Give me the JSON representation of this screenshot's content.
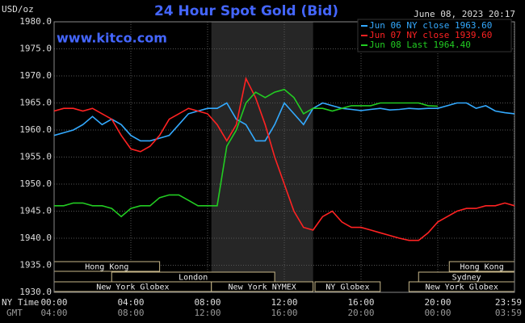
{
  "chart_data": {
    "type": "line",
    "title": "24 Hour Spot Gold (Bid)",
    "unit_label": "USD/oz",
    "timestamp": "June 08, 2023 20:17",
    "watermark": "www.kitco.com",
    "x_label_ny": "NY Time",
    "x_label_gmt": "GMT",
    "x": [
      0,
      0.5,
      1,
      1.5,
      2,
      2.5,
      3,
      3.5,
      4,
      4.5,
      5,
      5.5,
      6,
      6.5,
      7,
      7.5,
      8,
      8.5,
      9,
      9.5,
      10,
      10.5,
      11,
      11.5,
      12,
      12.5,
      13,
      13.5,
      14,
      14.5,
      15,
      15.5,
      16,
      16.5,
      17,
      17.5,
      18,
      18.5,
      19,
      19.5,
      20,
      20.5,
      21,
      21.5,
      22,
      22.5,
      23,
      23.5,
      24
    ],
    "xlim": [
      0,
      24
    ],
    "xticks": [
      {
        "value": 0,
        "label": "00:00",
        "gmt": "04:00"
      },
      {
        "value": 4,
        "label": "04:00",
        "gmt": "08:00"
      },
      {
        "value": 8,
        "label": "08:00",
        "gmt": "12:00"
      },
      {
        "value": 12,
        "label": "12:00",
        "gmt": "16:00"
      },
      {
        "value": 16,
        "label": "16:00",
        "gmt": "20:00"
      },
      {
        "value": 20,
        "label": "20:00",
        "gmt": "00:00"
      },
      {
        "value": 23.9833,
        "label": "23:59",
        "gmt": "03:59"
      }
    ],
    "ylim": [
      1930,
      1980
    ],
    "yticks": [
      {
        "value": 1930,
        "label": "1930.0"
      },
      {
        "value": 1935,
        "label": "1935.0"
      },
      {
        "value": 1940,
        "label": "1940.0"
      },
      {
        "value": 1945,
        "label": "1945.0"
      },
      {
        "value": 1950,
        "label": "1950.0"
      },
      {
        "value": 1955,
        "label": "1955.0"
      },
      {
        "value": 1960,
        "label": "1960.0"
      },
      {
        "value": 1965,
        "label": "1965.0"
      },
      {
        "value": 1970,
        "label": "1970.0"
      },
      {
        "value": 1975,
        "label": "1975.0"
      },
      {
        "value": 1980,
        "label": "1980.0"
      }
    ],
    "grid": true,
    "legend": "top-right",
    "series": [
      {
        "name": "Jun 06 NY close 1963.60",
        "color": "#33aaff",
        "values": [
          1959,
          1959.5,
          1960,
          1961,
          1962.5,
          1961,
          1962,
          1961,
          1959,
          1958,
          1958,
          1958.5,
          1959,
          1961,
          1963,
          1963.5,
          1964,
          1964,
          1965,
          1962,
          1961,
          1958,
          1958,
          1961,
          1965,
          1963,
          1961,
          1964,
          1965,
          1964.5,
          1964,
          1963.8,
          1963.6,
          1963.8,
          1964,
          1963.7,
          1963.8,
          1964,
          1963.9,
          1964,
          1964,
          1964.5,
          1965,
          1965,
          1964,
          1964.5,
          1963.5,
          1963.2,
          1963
        ]
      },
      {
        "name": "Jun 07 NY close 1939.60",
        "color": "#ff2222",
        "values": [
          1963.5,
          1964,
          1964,
          1963.5,
          1964,
          1963,
          1962,
          1959,
          1956.5,
          1956,
          1957,
          1959,
          1962,
          1963,
          1964,
          1963.5,
          1963,
          1961,
          1958,
          1961,
          1969.5,
          1966,
          1961,
          1955,
          1950,
          1945,
          1942,
          1941.5,
          1944,
          1945,
          1943,
          1942,
          1942,
          1941.5,
          1941,
          1940.5,
          1940,
          1939.6,
          1939.6,
          1941,
          1943,
          1944,
          1945,
          1945.5,
          1945.5,
          1946,
          1946,
          1946.5,
          1946
        ]
      },
      {
        "name": "Jun 08 Last 1964.40",
        "color": "#22cc22",
        "values": [
          1946,
          1946,
          1946.5,
          1946.5,
          1946,
          1946,
          1945.5,
          1944,
          1945.5,
          1946,
          1946,
          1947.5,
          1948,
          1948,
          1947,
          1946,
          1946,
          1946,
          1957,
          1960,
          1965,
          1967,
          1966,
          1967,
          1967.5,
          1966,
          1963,
          1964,
          1964,
          1963.5,
          1964,
          1964.5,
          1964.5,
          1964.5,
          1965,
          1965,
          1965,
          1965,
          1965,
          1964.5,
          1964.4,
          null,
          null,
          null,
          null,
          null,
          null,
          null,
          null
        ]
      }
    ],
    "sessions": [
      {
        "name": "Hong Kong",
        "start": 0,
        "end": 5.5
      },
      {
        "name": "Hong Kong",
        "start": 20.6,
        "end": 24
      },
      {
        "name": "London",
        "start": 3,
        "end": 11.5
      },
      {
        "name": "Sydney",
        "start": 19,
        "end": 24
      },
      {
        "name": "New York Globex",
        "start": 0,
        "end": 8.2
      },
      {
        "name": "New York NYMEX",
        "start": 8.2,
        "end": 13.5
      },
      {
        "name": "NY Globex",
        "start": 13.6,
        "end": 17
      },
      {
        "name": "New York Globex",
        "start": 18.5,
        "end": 24
      }
    ]
  }
}
